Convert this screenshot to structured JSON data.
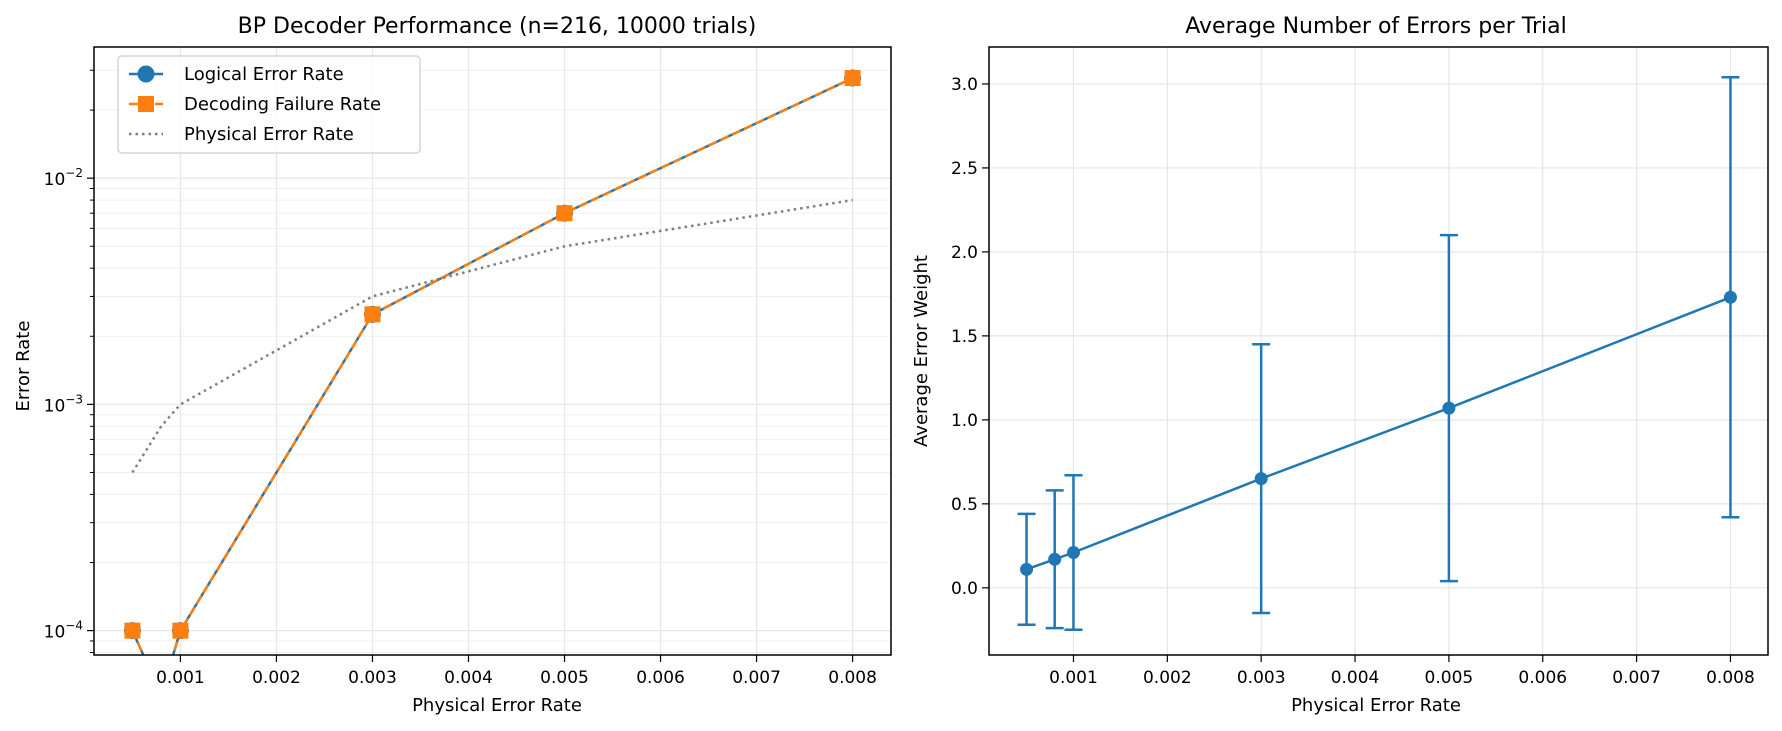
{
  "chart_data": [
    {
      "type": "line",
      "title": "BP Decoder Performance (n=216, 10000 trials)",
      "xlabel": "Physical Error Rate",
      "ylabel": "Error Rate",
      "xlim": [
        0.0001,
        0.0084
      ],
      "ylim": [
        7.8e-05,
        0.038
      ],
      "yscale": "log",
      "grid": true,
      "legend_position": "upper-left",
      "x_ticks": [
        0.001,
        0.002,
        0.003,
        0.004,
        0.005,
        0.006,
        0.007,
        0.008
      ],
      "x_tick_labels": [
        "0.001",
        "0.002",
        "0.003",
        "0.004",
        "0.005",
        "0.006",
        "0.007",
        "0.008"
      ],
      "y_ticks": [
        0.0001,
        0.001,
        0.01
      ],
      "y_tick_labels": [
        "10^-4",
        "10^-3",
        "10^-2"
      ],
      "series": [
        {
          "name": "Logical Error Rate",
          "color": "#1f77b4",
          "style": "solid",
          "marker": "circle",
          "points": [
            {
              "x": 0.0005,
              "y": 0.0001
            },
            {
              "x": 0.0008,
              "y": 0
            },
            {
              "x": 0.001,
              "y": 0.0001
            },
            {
              "x": 0.003,
              "y": 0.0025
            },
            {
              "x": 0.005,
              "y": 0.007
            },
            {
              "x": 0.008,
              "y": 0.0277
            }
          ]
        },
        {
          "name": "Decoding Failure Rate",
          "color": "#ff7f0e",
          "style": "dashed",
          "marker": "square",
          "points": [
            {
              "x": 0.0005,
              "y": 0.0001
            },
            {
              "x": 0.0008,
              "y": 0
            },
            {
              "x": 0.001,
              "y": 0.0001
            },
            {
              "x": 0.003,
              "y": 0.0025
            },
            {
              "x": 0.005,
              "y": 0.007
            },
            {
              "x": 0.008,
              "y": 0.0277
            }
          ]
        },
        {
          "name": "Physical Error Rate",
          "color": "#7f7f7f",
          "style": "dotted",
          "marker": "none",
          "points": [
            {
              "x": 0.0005,
              "y": 0.0005
            },
            {
              "x": 0.0008,
              "y": 0.0008
            },
            {
              "x": 0.001,
              "y": 0.001
            },
            {
              "x": 0.003,
              "y": 0.003
            },
            {
              "x": 0.005,
              "y": 0.005
            },
            {
              "x": 0.008,
              "y": 0.008
            }
          ]
        }
      ]
    },
    {
      "type": "line",
      "title": "Average Number of Errors per Trial",
      "xlabel": "Physical Error Rate",
      "ylabel": "Average Error Weight",
      "xlim": [
        0.0001,
        0.0084
      ],
      "ylim": [
        -0.4,
        3.22
      ],
      "grid": true,
      "x_ticks": [
        0.001,
        0.002,
        0.003,
        0.004,
        0.005,
        0.006,
        0.007,
        0.008
      ],
      "x_tick_labels": [
        "0.001",
        "0.002",
        "0.003",
        "0.004",
        "0.005",
        "0.006",
        "0.007",
        "0.008"
      ],
      "y_ticks": [
        0,
        0.5,
        1,
        1.5,
        2,
        2.5,
        3
      ],
      "y_tick_labels": [
        "0.0",
        "0.5",
        "1.0",
        "1.5",
        "2.0",
        "2.5",
        "3.0"
      ],
      "series": [
        {
          "color": "#1f77b4",
          "marker": "circle",
          "error_bars": true,
          "points": [
            {
              "x": 0.0005,
              "y": 0.11,
              "err": 0.33
            },
            {
              "x": 0.0008,
              "y": 0.17,
              "err": 0.41
            },
            {
              "x": 0.001,
              "y": 0.21,
              "err": 0.46
            },
            {
              "x": 0.003,
              "y": 0.65,
              "err": 0.8
            },
            {
              "x": 0.005,
              "y": 1.07,
              "err": 1.03
            },
            {
              "x": 0.008,
              "y": 1.73,
              "err": 1.31
            }
          ]
        }
      ]
    }
  ]
}
